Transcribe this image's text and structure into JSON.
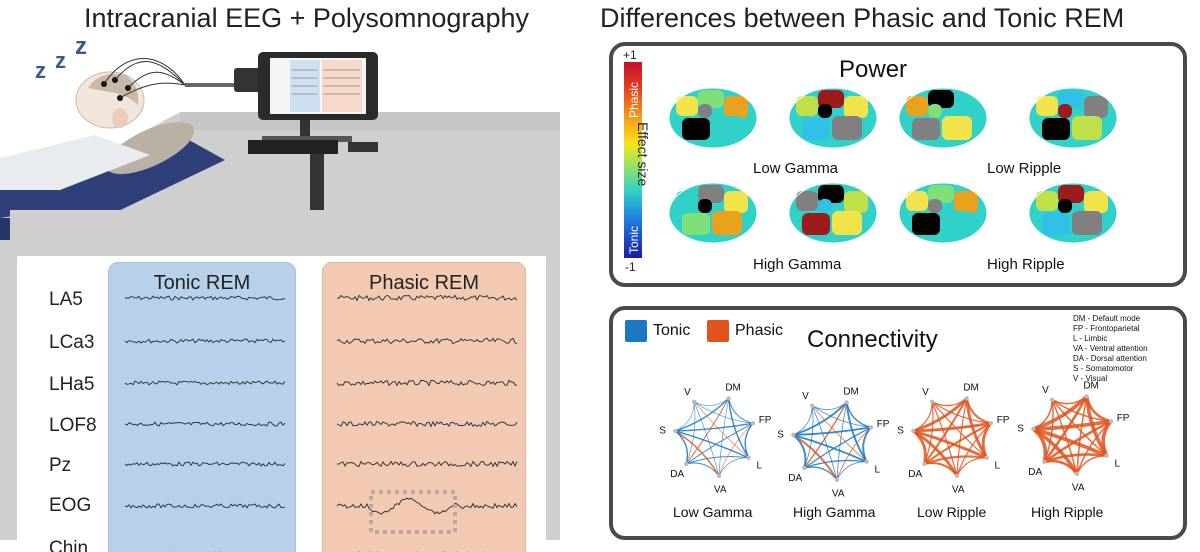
{
  "titles": {
    "left": "Intracranial EEG + Polysomnography",
    "right": "Differences between Phasic and Tonic REM"
  },
  "scene": {
    "sleep_text": "zzz",
    "monitor_labels": [
      "Tonic REM",
      "Phasic REM"
    ]
  },
  "eeg": {
    "tonic_title": "Tonic REM",
    "phasic_title": "Phasic REM",
    "channels": [
      "LA5",
      "LCa3",
      "LHa5",
      "LOF8",
      "Pz",
      "EOG",
      "Chin"
    ]
  },
  "power": {
    "title": "Power",
    "colorbar": {
      "top": "+1",
      "bottom": "-1",
      "high_label": "Phasic",
      "low_label": "Tonic",
      "axis_label": "Effect size"
    },
    "captions": [
      "Low Gamma",
      "Low  Ripple",
      "High Gamma",
      "High Ripple"
    ]
  },
  "connectivity": {
    "title": "Connectivity",
    "legend": [
      {
        "label": "Tonic",
        "color": "#1a78c2"
      },
      {
        "label": "Phasic",
        "color": "#e0541b"
      }
    ],
    "abbreviations": [
      "DM - Default mode",
      "FP - Frontoparietal",
      "L - Limbic",
      "VA - Ventral attention",
      "DA - Dorsal attention",
      "S - Somatomotor",
      "V - Visual"
    ],
    "nodes": [
      "DM",
      "FP",
      "L",
      "VA",
      "DA",
      "S",
      "V"
    ],
    "captions": [
      "Low Gamma",
      "High Gamma",
      "Low Ripple",
      "High Ripple"
    ]
  },
  "colors": {
    "tonic": "#1a78c2",
    "phasic": "#e0541b",
    "panel_border": "#4a4a4a"
  }
}
